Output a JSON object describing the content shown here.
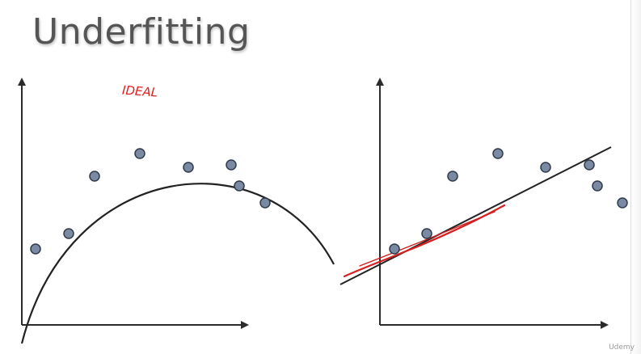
{
  "title": "Underfitting",
  "annotation": "IDEAL",
  "watermark": "Udemy",
  "colors": {
    "title": "#555555",
    "axis": "#2b2b2b",
    "curve": "#222222",
    "point_fill": "#7b8aa3",
    "point_stroke": "#2f3a4a",
    "annotation": "#e0201f"
  }
}
